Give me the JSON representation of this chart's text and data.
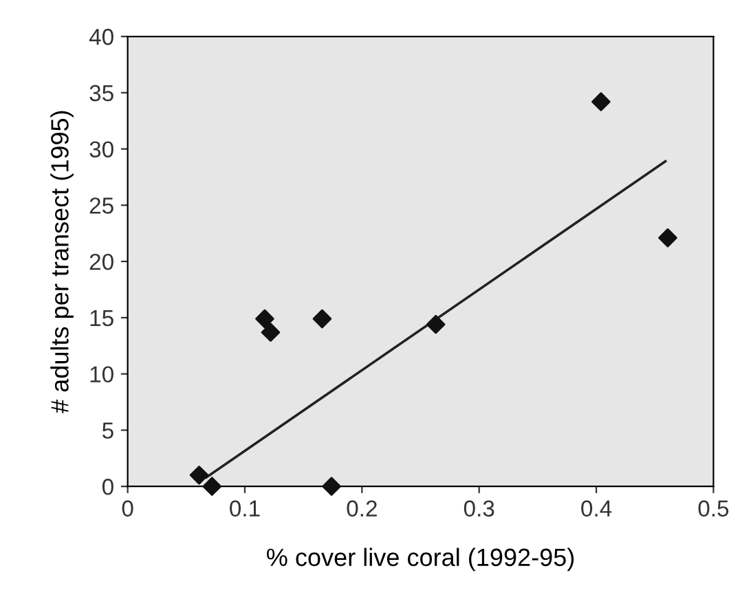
{
  "chart_data": {
    "type": "scatter",
    "xlabel": "% cover live coral (1992-95)",
    "ylabel": "# adults per transect (1995)",
    "xlim": [
      0,
      0.5
    ],
    "xticks": [
      0,
      0.1,
      0.2,
      0.3,
      0.4,
      0.5
    ],
    "ylim": [
      0,
      40
    ],
    "yticks": [
      0,
      5,
      10,
      15,
      20,
      25,
      30,
      35,
      40
    ],
    "grid": false,
    "legend": false,
    "series": [
      {
        "color": "#111111",
        "marker": "diamond",
        "x": [
          0.061,
          0.072,
          0.117,
          0.122,
          0.166,
          0.174,
          0.263,
          0.404,
          0.461
        ],
        "values": [
          1.0,
          0,
          14.9,
          13.7,
          14.9,
          0,
          14.4,
          34.2,
          22.1
        ]
      },
      {
        "type": "line",
        "color": "#222222",
        "marker": "none",
        "line_style": "solid",
        "x": [
          0.067,
          0.459
        ],
        "values": [
          0.8,
          28.9
        ]
      }
    ]
  }
}
